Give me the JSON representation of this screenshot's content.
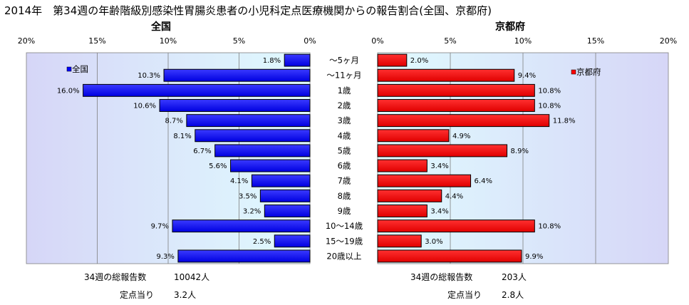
{
  "title": "2014年　第34週の年齢階級別感染性胃腸炎患者の小児科定点医療機関からの報告割合(全国、京都府)",
  "colors": {
    "national_bar": "#0000ff",
    "kyoto_bar": "#ff0000",
    "plot_bg_light": "#e0fbff",
    "plot_bg_dark": "#d6d6f7",
    "bar_outline": "#000000",
    "grid": "#7f7f7f"
  },
  "chart_data": [
    {
      "type": "bar",
      "orientation": "horizontal",
      "direction": "reversed",
      "heading": "全国",
      "legend": "全国",
      "legend_placement": "top-left",
      "categories": [
        "〜5ヶ月",
        "〜11ヶ月",
        "1歳",
        "2歳",
        "3歳",
        "4歳",
        "5歳",
        "6歳",
        "7歳",
        "8歳",
        "9歳",
        "10〜14歳",
        "15〜19歳",
        "20歳以上"
      ],
      "series": [
        {
          "name": "全国",
          "values": [
            1.8,
            10.3,
            16.0,
            10.6,
            8.7,
            8.1,
            6.7,
            5.6,
            4.1,
            3.5,
            3.2,
            9.7,
            2.5,
            9.3
          ]
        }
      ],
      "value_labels": [
        "1.8%",
        "10.3%",
        "16.0%",
        "10.6%",
        "8.7%",
        "8.1%",
        "6.7%",
        "5.6%",
        "4.1%",
        "3.5%",
        "3.2%",
        "9.7%",
        "2.5%",
        "9.3%"
      ],
      "xlim": [
        0,
        20
      ],
      "xticks": [
        "20%",
        "15%",
        "10%",
        "5%",
        "0%"
      ],
      "grid": true
    },
    {
      "type": "bar",
      "orientation": "horizontal",
      "direction": "normal",
      "heading": "京都府",
      "legend": "京都府",
      "legend_placement": "top-right",
      "categories": [
        "〜5ヶ月",
        "〜11ヶ月",
        "1歳",
        "2歳",
        "3歳",
        "4歳",
        "5歳",
        "6歳",
        "7歳",
        "8歳",
        "9歳",
        "10〜14歳",
        "15〜19歳",
        "20歳以上"
      ],
      "series": [
        {
          "name": "京都府",
          "values": [
            2.0,
            9.4,
            10.8,
            10.8,
            11.8,
            4.9,
            8.9,
            3.4,
            6.4,
            4.4,
            3.4,
            10.8,
            3.0,
            9.9
          ]
        }
      ],
      "value_labels": [
        "2.0%",
        "9.4%",
        "10.8%",
        "10.8%",
        "11.8%",
        "4.9%",
        "8.9%",
        "3.4%",
        "6.4%",
        "4.4%",
        "3.4%",
        "10.8%",
        "3.0%",
        "9.9%"
      ],
      "xlim": [
        0,
        20
      ],
      "xticks": [
        "0%",
        "5%",
        "10%",
        "15%",
        "20%"
      ],
      "grid": true
    }
  ],
  "footer": {
    "national": {
      "total_label": "34週の総報告数",
      "total_value": "10042人",
      "per_site_label": "定点当り",
      "per_site_value": "3.2人"
    },
    "kyoto": {
      "total_label": "34週の総報告数",
      "total_value": "203人",
      "per_site_label": "定点当り",
      "per_site_value": "2.8人"
    }
  }
}
